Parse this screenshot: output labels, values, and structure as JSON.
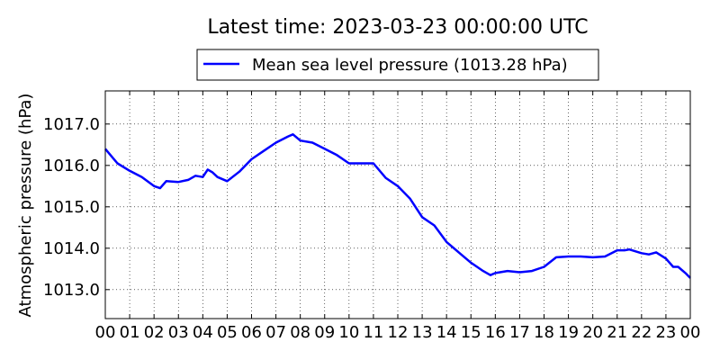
{
  "chart_data": {
    "type": "line",
    "title": "Latest time: 2023-03-23 00:00:00 UTC",
    "xlabel": "",
    "ylabel": "Atmospheric pressure (hPa)",
    "xlim": [
      0,
      24
    ],
    "ylim": [
      1012.3,
      1017.8
    ],
    "grid": true,
    "legend_placement": "top-center",
    "x_tick_labels": [
      "00",
      "01",
      "02",
      "03",
      "04",
      "05",
      "06",
      "07",
      "08",
      "09",
      "10",
      "11",
      "12",
      "13",
      "14",
      "15",
      "16",
      "17",
      "18",
      "19",
      "20",
      "21",
      "22",
      "23",
      "00"
    ],
    "y_ticks": [
      1013.0,
      1014.0,
      1015.0,
      1016.0,
      1017.0
    ],
    "y_tick_labels": [
      "1013.0",
      "1014.0",
      "1015.0",
      "1016.0",
      "1017.0"
    ],
    "series": [
      {
        "name": "Mean sea level pressure (1013.28 hPa)",
        "color": "#0000ff",
        "x": [
          0,
          0.5,
          1,
          1.5,
          2,
          2.25,
          2.5,
          3,
          3.4,
          3.7,
          4,
          4.2,
          4.4,
          4.6,
          5,
          5.5,
          6,
          6.5,
          7,
          7.5,
          7.7,
          8,
          8.5,
          9,
          9.5,
          10,
          10.5,
          11,
          11.5,
          12,
          12.5,
          13,
          13.5,
          14,
          14.5,
          15,
          15.5,
          15.8,
          16,
          16.5,
          17,
          17.5,
          18,
          18.5,
          19,
          19.5,
          20,
          20.5,
          21,
          21.3,
          21.5,
          22,
          22.3,
          22.6,
          23,
          23.3,
          23.5,
          23.8,
          24
        ],
        "values": [
          1016.4,
          1016.05,
          1015.87,
          1015.72,
          1015.5,
          1015.45,
          1015.62,
          1015.6,
          1015.65,
          1015.75,
          1015.72,
          1015.9,
          1015.83,
          1015.72,
          1015.62,
          1015.85,
          1016.15,
          1016.35,
          1016.55,
          1016.7,
          1016.75,
          1016.6,
          1016.55,
          1016.4,
          1016.25,
          1016.05,
          1016.05,
          1016.05,
          1015.7,
          1015.5,
          1015.2,
          1014.75,
          1014.55,
          1014.15,
          1013.9,
          1013.65,
          1013.45,
          1013.35,
          1013.4,
          1013.45,
          1013.42,
          1013.45,
          1013.55,
          1013.78,
          1013.8,
          1013.8,
          1013.78,
          1013.8,
          1013.95,
          1013.95,
          1013.97,
          1013.88,
          1013.85,
          1013.9,
          1013.75,
          1013.55,
          1013.55,
          1013.4,
          1013.28
        ]
      }
    ]
  }
}
